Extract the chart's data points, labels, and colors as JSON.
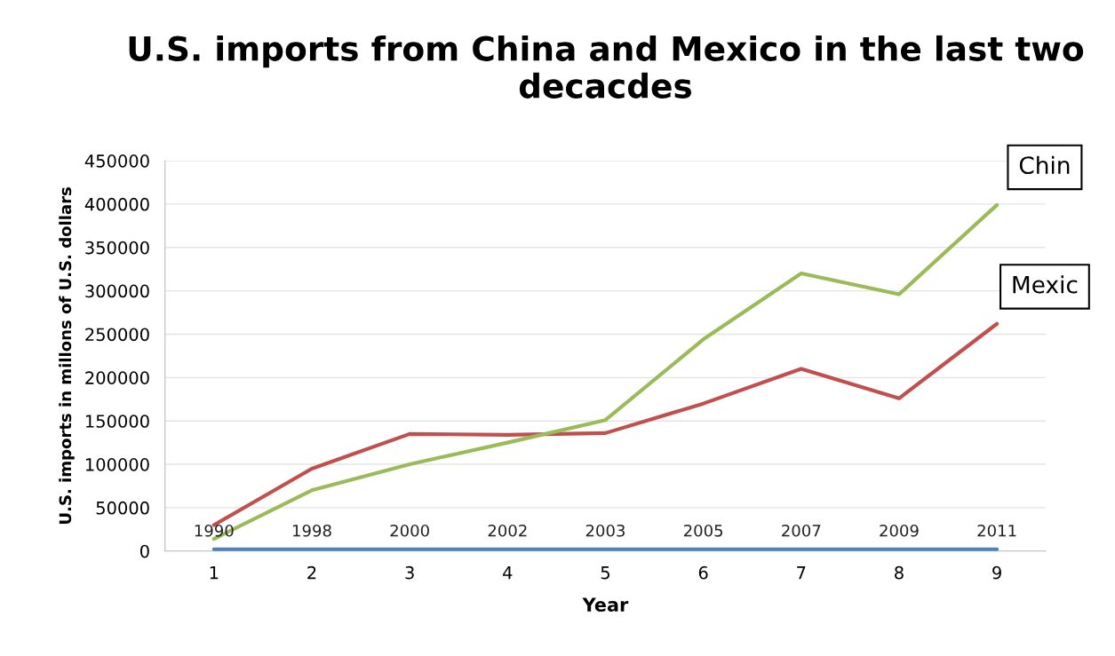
{
  "chart_data": {
    "type": "line",
    "title": "U.S. imports from China and Mexico in the last two decacdes",
    "xlabel": "Year",
    "ylabel": "U.S. imports in millons of U.S. dollars",
    "categories": [
      "1",
      "2",
      "3",
      "4",
      "5",
      "6",
      "7",
      "8",
      "9"
    ],
    "series": [
      {
        "color": "#4f81bd",
        "values": [
          1990,
          1998,
          2000,
          2002,
          2003,
          2005,
          2007,
          2009,
          2011
        ],
        "data_labels": true
      },
      {
        "color": "#c0504d",
        "values": [
          30000,
          95000,
          135000,
          134000,
          136000,
          170000,
          210000,
          176000,
          262000
        ]
      },
      {
        "color": "#9bbb59",
        "values": [
          14000,
          70000,
          100000,
          125000,
          151000,
          244000,
          320000,
          296000,
          399000
        ]
      }
    ],
    "ylim": [
      0,
      450000
    ],
    "yticks": [
      0,
      50000,
      100000,
      150000,
      200000,
      250000,
      300000,
      350000,
      400000,
      450000
    ],
    "grid": "y",
    "legend": false,
    "marker": "none",
    "annotations": [
      "Chin",
      "Mexic"
    ]
  }
}
